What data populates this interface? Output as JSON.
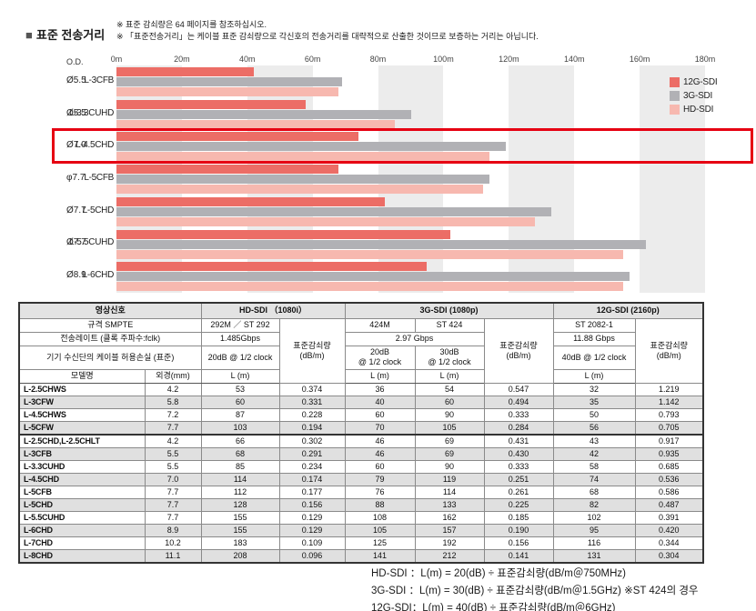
{
  "page": {
    "bullet": "■",
    "title": "표준 전송거리",
    "note1": "※ 표준 감쇠량은 64 페이지를 참조하십시오.",
    "note2": "※ 「표준전송거리」는 케이블 표준 감쇠량으로 각신호의 전송거리를 대략적으로 산출한 것이므로 보증하는 거리는 아닙니다."
  },
  "chart_data": {
    "type": "bar",
    "orientation": "horizontal",
    "title": "표준 전송거리 (표준 전송거리 차트)",
    "x_unit": "m",
    "xlim": [
      0,
      180
    ],
    "x_ticks": [
      "0m",
      "20m",
      "40m",
      "60m",
      "80m",
      "100m",
      "120m",
      "140m",
      "160m",
      "180m"
    ],
    "od_header": "O.D.",
    "grid": "alternating vertical bands every 20m",
    "stripe_color": "#ececec",
    "legend_position": "top-right",
    "highlight_index": 2,
    "highlight_color": "#e60012",
    "categories": [
      {
        "od": "Ø5.5",
        "model": "L-3CFB"
      },
      {
        "od": "Ø5.5",
        "model": "L-3.3CUHD"
      },
      {
        "od": "Ø7.0",
        "model": "L-4.5CHD"
      },
      {
        "od": "φ7.7",
        "model": "L-5CFB"
      },
      {
        "od": "Ø7.7",
        "model": "L-5CHD"
      },
      {
        "od": "Ø7.7",
        "model": "L-5.5CUHD"
      },
      {
        "od": "Ø8.9",
        "model": "L-6CHD"
      }
    ],
    "series": [
      {
        "name": "12G-SDI",
        "color": "#ec6d66",
        "values": [
          42,
          58,
          74,
          68,
          82,
          102,
          95
        ]
      },
      {
        "name": "3G-SDI",
        "color": "#b1b1b5",
        "values": [
          69,
          90,
          119,
          114,
          133,
          162,
          157
        ]
      },
      {
        "name": "HD-SDI",
        "color": "#f7b8af",
        "values": [
          68,
          85,
          114,
          112,
          128,
          155,
          155
        ]
      }
    ]
  },
  "table": {
    "header": {
      "signal": "영상신호",
      "hd_title": "HD-SDI （1080i）",
      "g3_title": "3G-SDI (1080p)",
      "g12_title": "12G-SDI (2160p)",
      "smpte_label": "규격 SMPTE",
      "hd_smpte": "292M ／ ST 292",
      "rate_label": "전송레이트 (클록 주파수:fclk)",
      "hd_rate": "1.485Gbps",
      "loss_label": "기기 수신단의 케이블 허용손실 (표준)",
      "hd_loss": "20dB @ 1/2 clock",
      "atten_line1": "표준감쇠량",
      "atten_line2": "(dB/m)",
      "g3_424m": "424M",
      "g3_st424": "ST 424",
      "g3_rate": "2.97 Gbps",
      "g3_loss20_line1": "20dB",
      "g3_loss30_line1": "30dB",
      "half_clock": "@ 1/2 clock",
      "g12_smpte": "ST 2082-1",
      "g12_rate": "11.88 Gbps",
      "g12_loss": "40dB @ 1/2 clock",
      "model": "모델명",
      "od": "외경(mm)",
      "lm": "L (m)"
    },
    "rows": [
      {
        "model": "L-2.5CHWS",
        "od": "4.2",
        "hd_l": "53",
        "hd_a": "0.374",
        "g3_l20": "36",
        "g3_l30": "54",
        "g3_a": "0.547",
        "g12_l": "32",
        "g12_a": "1.219"
      },
      {
        "model": "L-3CFW",
        "od": "5.8",
        "hd_l": "60",
        "hd_a": "0.331",
        "g3_l20": "40",
        "g3_l30": "60",
        "g3_a": "0.494",
        "g12_l": "35",
        "g12_a": "1.142"
      },
      {
        "model": "L-4.5CHWS",
        "od": "7.2",
        "hd_l": "87",
        "hd_a": "0.228",
        "g3_l20": "60",
        "g3_l30": "90",
        "g3_a": "0.333",
        "g12_l": "50",
        "g12_a": "0.793"
      },
      {
        "model": "L-5CFW",
        "od": "7.7",
        "hd_l": "103",
        "hd_a": "0.194",
        "g3_l20": "70",
        "g3_l30": "105",
        "g3_a": "0.284",
        "g12_l": "56",
        "g12_a": "0.705"
      },
      {
        "model": "L-2.5CHD,L-2.5CHLT",
        "od": "4.2",
        "hd_l": "66",
        "hd_a": "0.302",
        "g3_l20": "46",
        "g3_l30": "69",
        "g3_a": "0.431",
        "g12_l": "43",
        "g12_a": "0.917"
      },
      {
        "model": "L-3CFB",
        "od": "5.5",
        "hd_l": "68",
        "hd_a": "0.291",
        "g3_l20": "46",
        "g3_l30": "69",
        "g3_a": "0.430",
        "g12_l": "42",
        "g12_a": "0.935"
      },
      {
        "model": "L-3.3CUHD",
        "od": "5.5",
        "hd_l": "85",
        "hd_a": "0.234",
        "g3_l20": "60",
        "g3_l30": "90",
        "g3_a": "0.333",
        "g12_l": "58",
        "g12_a": "0.685"
      },
      {
        "model": "L-4.5CHD",
        "od": "7.0",
        "hd_l": "114",
        "hd_a": "0.174",
        "g3_l20": "79",
        "g3_l30": "119",
        "g3_a": "0.251",
        "g12_l": "74",
        "g12_a": "0.536"
      },
      {
        "model": "L-5CFB",
        "od": "7.7",
        "hd_l": "112",
        "hd_a": "0.177",
        "g3_l20": "76",
        "g3_l30": "114",
        "g3_a": "0.261",
        "g12_l": "68",
        "g12_a": "0.586"
      },
      {
        "model": "L-5CHD",
        "od": "7.7",
        "hd_l": "128",
        "hd_a": "0.156",
        "g3_l20": "88",
        "g3_l30": "133",
        "g3_a": "0.225",
        "g12_l": "82",
        "g12_a": "0.487"
      },
      {
        "model": "L-5.5CUHD",
        "od": "7.7",
        "hd_l": "155",
        "hd_a": "0.129",
        "g3_l20": "108",
        "g3_l30": "162",
        "g3_a": "0.185",
        "g12_l": "102",
        "g12_a": "0.391"
      },
      {
        "model": "L-6CHD",
        "od": "8.9",
        "hd_l": "155",
        "hd_a": "0.129",
        "g3_l20": "105",
        "g3_l30": "157",
        "g3_a": "0.190",
        "g12_l": "95",
        "g12_a": "0.420"
      },
      {
        "model": "L-7CHD",
        "od": "10.2",
        "hd_l": "183",
        "hd_a": "0.109",
        "g3_l20": "125",
        "g3_l30": "192",
        "g3_a": "0.156",
        "g12_l": "116",
        "g12_a": "0.344"
      },
      {
        "model": "L-8CHD",
        "od": "11.1",
        "hd_l": "208",
        "hd_a": "0.096",
        "g3_l20": "141",
        "g3_l30": "212",
        "g3_a": "0.141",
        "g12_l": "131",
        "g12_a": "0.304"
      }
    ]
  },
  "footnotes": [
    "HD-SDI  ：L(m) = 20(dB) ÷ 표준감쇠량(dB/m＠750MHz)",
    "3G-SDI  ：L(m) = 30(dB) ÷ 표준감쇠량(dB/m＠1.5GHz)  ※ST 424의 경우",
    "12G-SDI：L(m) = 40(dB) ÷ 표준감쇠량(dB/m＠6GHz)"
  ]
}
